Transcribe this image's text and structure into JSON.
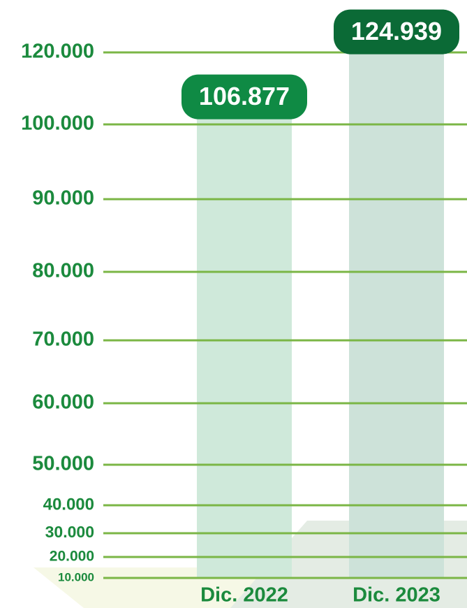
{
  "chart_data": {
    "type": "bar",
    "categories": [
      "Dic. 2022",
      "Dic. 2023"
    ],
    "values": [
      106877,
      124939
    ],
    "value_labels": [
      "106.877",
      "124.939"
    ],
    "colors": [
      "#cfe9da",
      "#cde2d9"
    ],
    "label_colors": [
      "#0f8a44",
      "#0b6a36"
    ],
    "ylim": [
      10000,
      130000
    ],
    "yticks": [
      {
        "value": 10000,
        "label": "10.000"
      },
      {
        "value": 20000,
        "label": "20.000"
      },
      {
        "value": 30000,
        "label": "30.000"
      },
      {
        "value": 40000,
        "label": "40.000"
      },
      {
        "value": 50000,
        "label": "50.000"
      },
      {
        "value": 60000,
        "label": "60.000"
      },
      {
        "value": 70000,
        "label": "70.000"
      },
      {
        "value": 80000,
        "label": "80.000"
      },
      {
        "value": 90000,
        "label": "90.000"
      },
      {
        "value": 100000,
        "label": "100.000"
      },
      {
        "value": 120000,
        "label": "120.000"
      }
    ],
    "grid": true
  }
}
